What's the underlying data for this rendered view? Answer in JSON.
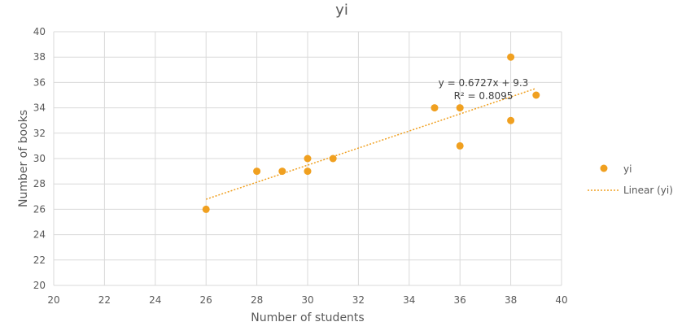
{
  "chart_data": {
    "type": "scatter",
    "title": "yi",
    "xlabel": "Number of students",
    "ylabel": "Number of books",
    "xlim": [
      20,
      40
    ],
    "ylim": [
      20,
      40
    ],
    "xticks": [
      20,
      22,
      24,
      26,
      28,
      30,
      32,
      34,
      36,
      38,
      40
    ],
    "yticks": [
      20,
      22,
      24,
      26,
      28,
      30,
      32,
      34,
      36,
      38,
      40
    ],
    "grid": true,
    "legend_position": "right",
    "series": [
      {
        "name": "yi",
        "color": "#F0A020",
        "points": [
          {
            "x": 26,
            "y": 26
          },
          {
            "x": 28,
            "y": 29
          },
          {
            "x": 29,
            "y": 29
          },
          {
            "x": 30,
            "y": 30
          },
          {
            "x": 30,
            "y": 29
          },
          {
            "x": 31,
            "y": 30
          },
          {
            "x": 35,
            "y": 34
          },
          {
            "x": 36,
            "y": 34
          },
          {
            "x": 36,
            "y": 31
          },
          {
            "x": 38,
            "y": 38
          },
          {
            "x": 38,
            "y": 33
          },
          {
            "x": 39,
            "y": 35
          }
        ]
      }
    ],
    "trendline": {
      "name": "Linear (yi)",
      "type": "linear",
      "slope": 0.6727,
      "intercept": 9.3,
      "x_range": [
        26,
        39
      ],
      "color": "#F0A020",
      "equation_text": "y = 0.6727x + 9.3",
      "r2_text": "R² = 0.8095"
    }
  }
}
